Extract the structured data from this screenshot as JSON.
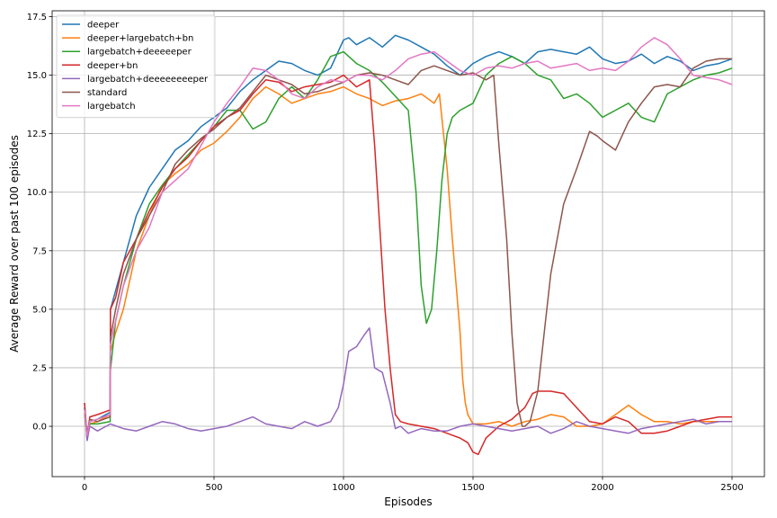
{
  "chart_data": {
    "type": "line",
    "title": "",
    "xlabel": "Episodes",
    "ylabel": "Average Reward over past 100 episodes",
    "xlim": [
      -125,
      2625
    ],
    "ylim": [
      -2.15,
      17.75
    ],
    "xticks": [
      0,
      500,
      1000,
      1500,
      2000,
      2500
    ],
    "xtick_labels": [
      "0",
      "500",
      "1000",
      "1500",
      "2000",
      "2500"
    ],
    "yticks": [
      0,
      2.5,
      5,
      7.5,
      10,
      12.5,
      15,
      17.5
    ],
    "ytick_labels": [
      "0.0",
      "2.5",
      "5.0",
      "7.5",
      "10.0",
      "12.5",
      "15.0",
      "17.5"
    ],
    "grid": true,
    "legend_position": "top-left",
    "series": [
      {
        "name": "deeper",
        "color": "#1f77b4",
        "x": [
          0,
          10,
          20,
          50,
          99,
          100,
          120,
          150,
          200,
          250,
          300,
          350,
          400,
          450,
          500,
          550,
          600,
          650,
          700,
          750,
          800,
          850,
          900,
          950,
          1000,
          1020,
          1050,
          1100,
          1150,
          1200,
          1250,
          1300,
          1350,
          1400,
          1450,
          1500,
          1550,
          1600,
          1650,
          1700,
          1750,
          1800,
          1850,
          1900,
          1950,
          2000,
          2050,
          2100,
          2150,
          2200,
          2250,
          2300,
          2350,
          2400,
          2450,
          2500
        ],
        "y": [
          1.0,
          -0.6,
          0.2,
          0.3,
          0.6,
          5.0,
          5.8,
          7.0,
          9.0,
          10.2,
          11.0,
          11.8,
          12.2,
          12.8,
          13.2,
          13.6,
          14.3,
          14.8,
          15.2,
          15.6,
          15.5,
          15.2,
          15.0,
          15.3,
          16.5,
          16.6,
          16.3,
          16.6,
          16.2,
          16.7,
          16.5,
          16.2,
          15.9,
          15.4,
          15.0,
          15.5,
          15.8,
          16.0,
          15.8,
          15.5,
          16.0,
          16.1,
          16.0,
          15.9,
          16.2,
          15.7,
          15.5,
          15.6,
          15.9,
          15.5,
          15.8,
          15.6,
          15.2,
          15.4,
          15.5,
          15.7
        ]
      },
      {
        "name": "deeper+largebatch+bn",
        "color": "#ff7f0e",
        "x": [
          0,
          10,
          20,
          50,
          99,
          100,
          120,
          150,
          200,
          250,
          300,
          350,
          400,
          450,
          500,
          550,
          600,
          650,
          700,
          750,
          800,
          850,
          900,
          950,
          1000,
          1050,
          1100,
          1150,
          1200,
          1250,
          1300,
          1350,
          1370,
          1400,
          1420,
          1450,
          1460,
          1470,
          1480,
          1500,
          1550,
          1600,
          1650,
          1700,
          1750,
          1800,
          1850,
          1900,
          1950,
          2000,
          2050,
          2100,
          2150,
          2200,
          2250,
          2300,
          2350,
          2400,
          2450,
          2500
        ],
        "y": [
          0.6,
          -0.5,
          0.1,
          0.2,
          0.5,
          3.2,
          4.0,
          5.0,
          7.5,
          9.0,
          10.3,
          10.8,
          11.2,
          11.8,
          12.1,
          12.6,
          13.2,
          14.0,
          14.5,
          14.2,
          13.8,
          14.0,
          14.2,
          14.3,
          14.5,
          14.2,
          14.0,
          13.7,
          13.9,
          14.0,
          14.2,
          13.8,
          14.2,
          11.0,
          8.0,
          4.0,
          2.0,
          1.0,
          0.5,
          0.1,
          0.1,
          0.2,
          0.0,
          0.2,
          0.3,
          0.5,
          0.4,
          0.0,
          0.0,
          0.1,
          0.5,
          0.9,
          0.5,
          0.2,
          0.2,
          0.1,
          0.2,
          0.2,
          0.2,
          0.2
        ]
      },
      {
        "name": "largebatch+deeeeeper",
        "color": "#2ca02c",
        "x": [
          0,
          10,
          20,
          50,
          99,
          100,
          120,
          150,
          200,
          250,
          300,
          350,
          400,
          450,
          500,
          550,
          600,
          650,
          700,
          750,
          800,
          850,
          900,
          950,
          1000,
          1050,
          1100,
          1150,
          1200,
          1250,
          1280,
          1300,
          1320,
          1340,
          1360,
          1380,
          1400,
          1420,
          1450,
          1500,
          1550,
          1600,
          1650,
          1700,
          1750,
          1800,
          1850,
          1900,
          1950,
          2000,
          2050,
          2100,
          2150,
          2200,
          2250,
          2300,
          2350,
          2400,
          2450,
          2500
        ],
        "y": [
          0.5,
          -0.3,
          0.1,
          0.1,
          0.2,
          2.4,
          4.5,
          6.0,
          8.0,
          9.5,
          10.3,
          11.0,
          11.6,
          12.2,
          12.8,
          13.5,
          13.5,
          12.7,
          13.0,
          14.0,
          14.5,
          14.0,
          14.8,
          15.8,
          16.0,
          15.5,
          15.2,
          14.7,
          14.1,
          13.5,
          10.0,
          6.0,
          4.4,
          5.0,
          7.5,
          10.5,
          12.5,
          13.2,
          13.5,
          13.8,
          15.0,
          15.5,
          15.8,
          15.5,
          15.0,
          14.8,
          14.0,
          14.2,
          13.8,
          13.2,
          13.5,
          13.8,
          13.2,
          13.0,
          14.2,
          14.5,
          14.8,
          15.0,
          15.1,
          15.3
        ]
      },
      {
        "name": "deeper+bn",
        "color": "#d62728",
        "x": [
          0,
          10,
          20,
          50,
          99,
          100,
          120,
          150,
          200,
          250,
          300,
          350,
          400,
          450,
          500,
          550,
          600,
          650,
          700,
          750,
          800,
          850,
          900,
          950,
          1000,
          1050,
          1100,
          1120,
          1140,
          1160,
          1180,
          1200,
          1220,
          1250,
          1300,
          1350,
          1400,
          1450,
          1480,
          1500,
          1520,
          1550,
          1600,
          1650,
          1700,
          1730,
          1750,
          1800,
          1850,
          1900,
          1950,
          2000,
          2050,
          2100,
          2150,
          2200,
          2250,
          2300,
          2350,
          2400,
          2450,
          2500
        ],
        "y": [
          1.0,
          -0.5,
          0.4,
          0.5,
          0.7,
          5.0,
          5.5,
          7.0,
          8.0,
          9.2,
          10.2,
          11.0,
          11.5,
          12.2,
          12.8,
          13.2,
          13.5,
          14.2,
          14.8,
          14.7,
          14.3,
          14.5,
          14.6,
          14.7,
          15.0,
          14.5,
          14.8,
          12.0,
          8.5,
          5.0,
          2.5,
          0.5,
          0.2,
          0.1,
          0.0,
          -0.1,
          -0.3,
          -0.5,
          -0.7,
          -1.1,
          -1.2,
          -0.5,
          0.0,
          0.3,
          0.8,
          1.4,
          1.5,
          1.5,
          1.4,
          0.8,
          0.2,
          0.1,
          0.4,
          0.2,
          -0.3,
          -0.3,
          -0.2,
          0.0,
          0.2,
          0.3,
          0.4,
          0.4
        ]
      },
      {
        "name": "largebatch+deeeeeeeeper",
        "color": "#9467bd",
        "x": [
          0,
          10,
          20,
          50,
          100,
          150,
          200,
          250,
          300,
          350,
          400,
          450,
          500,
          550,
          600,
          650,
          700,
          750,
          800,
          850,
          900,
          950,
          980,
          1000,
          1020,
          1050,
          1080,
          1100,
          1120,
          1150,
          1180,
          1200,
          1220,
          1250,
          1300,
          1350,
          1400,
          1450,
          1500,
          1550,
          1600,
          1650,
          1700,
          1750,
          1800,
          1850,
          1900,
          1950,
          2000,
          2050,
          2100,
          2150,
          2200,
          2250,
          2300,
          2350,
          2400,
          2450,
          2500
        ],
        "y": [
          0.8,
          -0.6,
          0.0,
          -0.2,
          0.1,
          -0.1,
          -0.2,
          0.0,
          0.2,
          0.1,
          -0.1,
          -0.2,
          -0.1,
          0.0,
          0.2,
          0.4,
          0.1,
          0.0,
          -0.1,
          0.2,
          0.0,
          0.2,
          0.8,
          1.8,
          3.2,
          3.4,
          3.9,
          4.2,
          2.5,
          2.3,
          1.0,
          -0.1,
          0.0,
          -0.3,
          -0.1,
          -0.2,
          -0.2,
          0.0,
          0.1,
          0.0,
          -0.1,
          -0.2,
          -0.1,
          0.0,
          -0.3,
          -0.1,
          0.2,
          0.0,
          -0.1,
          -0.2,
          -0.3,
          -0.1,
          0.0,
          0.1,
          0.2,
          0.3,
          0.1,
          0.2,
          0.2
        ]
      },
      {
        "name": "standard",
        "color": "#8c564b",
        "x": [
          0,
          10,
          20,
          50,
          99,
          100,
          120,
          150,
          200,
          250,
          300,
          350,
          400,
          450,
          500,
          550,
          600,
          650,
          700,
          750,
          800,
          850,
          900,
          950,
          1000,
          1050,
          1100,
          1150,
          1200,
          1250,
          1300,
          1350,
          1400,
          1450,
          1500,
          1550,
          1580,
          1600,
          1630,
          1650,
          1670,
          1690,
          1700,
          1720,
          1750,
          1780,
          1800,
          1850,
          1900,
          1950,
          1980,
          2000,
          2050,
          2100,
          2150,
          2200,
          2250,
          2300,
          2350,
          2400,
          2450,
          2500
        ],
        "y": [
          0.8,
          -0.3,
          0.3,
          0.2,
          0.4,
          3.8,
          5.0,
          6.5,
          8.0,
          9.0,
          10.0,
          11.2,
          11.8,
          12.3,
          12.7,
          13.2,
          13.6,
          14.3,
          15.0,
          14.8,
          14.6,
          14.2,
          14.3,
          14.5,
          14.7,
          15.0,
          15.1,
          15.0,
          14.8,
          14.6,
          15.2,
          15.4,
          15.2,
          15.0,
          15.1,
          14.8,
          15.0,
          12.0,
          8.0,
          4.0,
          1.0,
          0.0,
          0.0,
          0.2,
          1.5,
          4.5,
          6.5,
          9.5,
          11.0,
          12.6,
          12.4,
          12.2,
          11.8,
          13.0,
          13.8,
          14.5,
          14.6,
          14.5,
          15.3,
          15.6,
          15.7,
          15.7
        ]
      },
      {
        "name": "largebatch",
        "color": "#e377c2",
        "x": [
          0,
          10,
          20,
          50,
          99,
          100,
          120,
          150,
          200,
          250,
          300,
          350,
          400,
          450,
          500,
          550,
          600,
          650,
          700,
          750,
          800,
          850,
          900,
          950,
          1000,
          1050,
          1100,
          1150,
          1200,
          1250,
          1300,
          1350,
          1400,
          1450,
          1500,
          1550,
          1600,
          1650,
          1700,
          1750,
          1800,
          1850,
          1900,
          1950,
          2000,
          2050,
          2100,
          2150,
          2200,
          2250,
          2300,
          2350,
          2400,
          2450,
          2500
        ],
        "y": [
          0.7,
          -0.4,
          0.2,
          0.3,
          0.5,
          3.5,
          4.5,
          6.0,
          7.5,
          8.5,
          10.0,
          10.5,
          11.0,
          12.0,
          13.0,
          13.8,
          14.5,
          15.3,
          15.2,
          14.8,
          14.2,
          14.0,
          14.5,
          14.8,
          14.7,
          15.0,
          15.0,
          14.8,
          15.2,
          15.7,
          15.9,
          16.0,
          15.6,
          15.2,
          15.0,
          15.3,
          15.4,
          15.3,
          15.5,
          15.6,
          15.3,
          15.4,
          15.5,
          15.2,
          15.3,
          15.2,
          15.6,
          16.2,
          16.6,
          16.3,
          15.7,
          15.0,
          14.9,
          14.8,
          14.6
        ]
      }
    ]
  }
}
